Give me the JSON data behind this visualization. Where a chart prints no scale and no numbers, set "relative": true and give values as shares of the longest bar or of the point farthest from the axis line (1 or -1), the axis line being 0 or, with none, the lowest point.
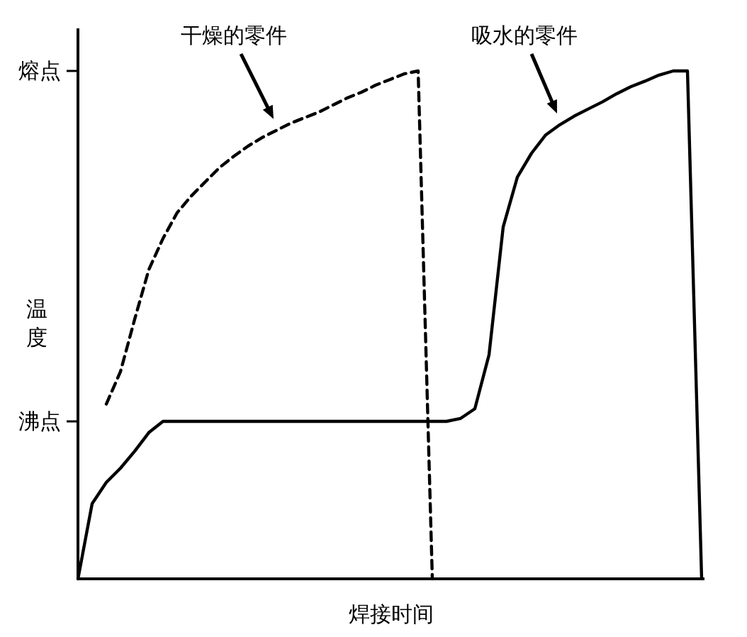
{
  "chart_data": {
    "type": "line",
    "relative": true,
    "xlabel": "焊接时间",
    "ylabel": "温度",
    "categories": [
      null,
      null,
      null,
      null,
      null,
      null,
      null,
      null,
      null,
      null,
      null,
      null,
      null,
      null,
      null,
      null,
      null,
      null,
      null,
      null,
      null,
      null,
      null,
      null,
      null,
      null,
      null,
      null,
      null,
      null,
      null,
      null,
      null,
      null,
      null,
      null,
      null,
      null,
      null,
      null,
      null,
      null,
      null,
      null,
      null
    ],
    "ref_lines": [
      {
        "axis": "y",
        "value": 1,
        "label": "熔点",
        "color": "#000000"
      },
      {
        "axis": "y",
        "value": 0.31,
        "label": "沸点",
        "color": "#000000"
      }
    ],
    "series": [
      {
        "name": "干燥的零件",
        "color": "#000000",
        "line_style": "dashed",
        "values": [
          null,
          null,
          0.344,
          0.408,
          0.511,
          0.609,
          0.67,
          0.721,
          0.754,
          0.782,
          0.81,
          0.832,
          0.852,
          0.869,
          0.883,
          0.897,
          0.908,
          0.919,
          0.933,
          0.947,
          0.958,
          0.972,
          0.983,
          0.994,
          1,
          0,
          null,
          null,
          null,
          null,
          null,
          null,
          null,
          null,
          null,
          null,
          null,
          null,
          null,
          null,
          null,
          null,
          null,
          null,
          null
        ]
      },
      {
        "name": "吸水的零件",
        "color": "#000000",
        "line_style": "solid",
        "values": [
          0,
          0.148,
          0.19,
          0.218,
          0.251,
          0.288,
          0.31,
          0.31,
          0.31,
          0.31,
          0.31,
          0.31,
          0.31,
          0.31,
          0.31,
          0.31,
          0.31,
          0.31,
          0.31,
          0.31,
          0.31,
          0.31,
          0.31,
          0.31,
          0.31,
          0.31,
          0.31,
          0.316,
          0.335,
          0.441,
          0.693,
          0.791,
          0.838,
          0.874,
          0.894,
          0.911,
          0.925,
          0.939,
          0.955,
          0.969,
          0.98,
          0.992,
          1,
          1,
          0
        ]
      }
    ],
    "grid": false,
    "legend": false,
    "marker": "none"
  }
}
